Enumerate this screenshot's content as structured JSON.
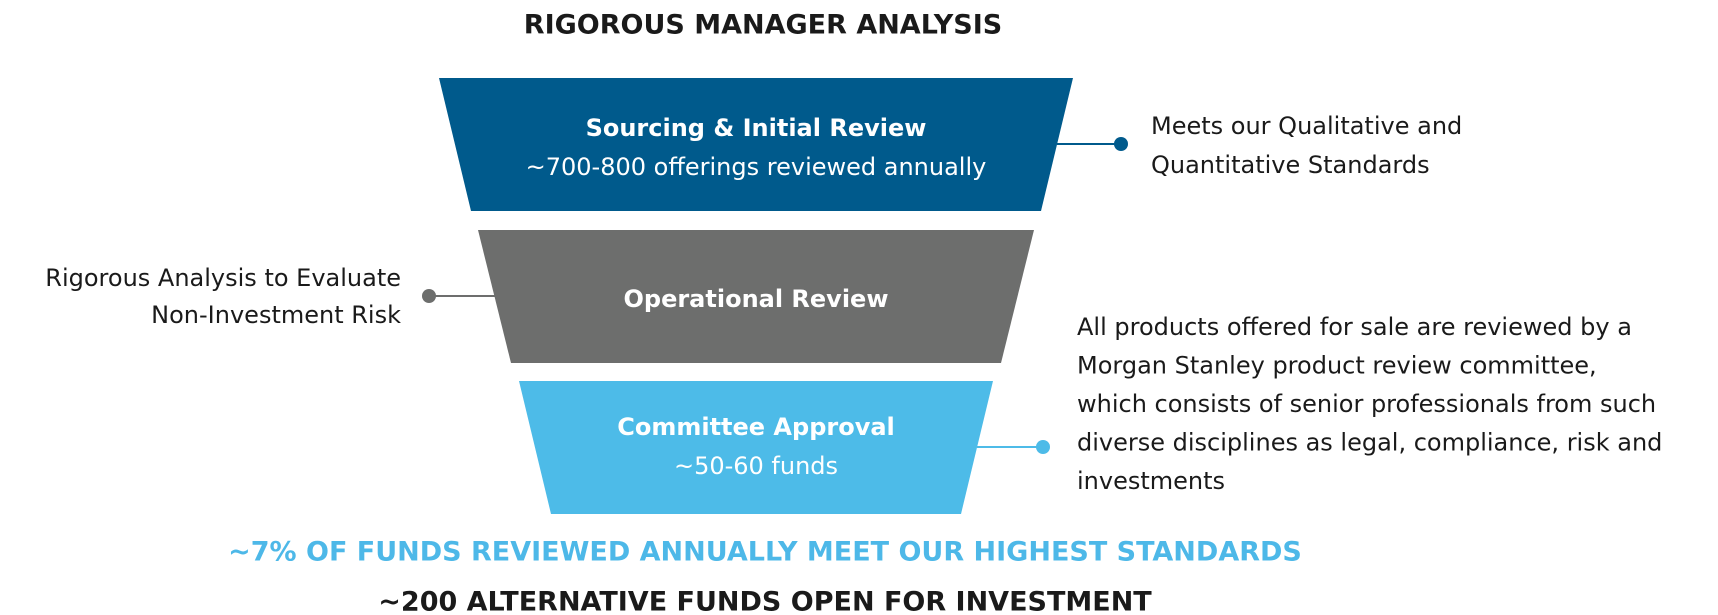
{
  "title": "RIGOROUS MANAGER ANALYSIS",
  "stages": [
    {
      "title": "Sourcing & Initial Review",
      "subtitle": "~700-800 offerings reviewed annually"
    },
    {
      "title": "Operational Review"
    },
    {
      "title": "Committee Approval",
      "subtitle": "~50-60 funds"
    }
  ],
  "annotations": [
    {
      "lines": [
        "Meets our Qualitative and",
        "Quantitative Standards"
      ]
    },
    {
      "lines": [
        "Rigorous Analysis to Evaluate",
        "Non-Investment Risk"
      ]
    },
    {
      "lines": [
        "All products offered for sale are reviewed by a",
        "Morgan Stanley product review committee,",
        "which consists of senior professionals from such",
        "diverse disciplines as legal, compliance, risk and",
        "investments"
      ]
    }
  ],
  "footer": [
    "~7% OF FUNDS REVIEWED ANNUALLY MEET OUR HIGHEST STANDARDS",
    "~200 ALTERNATIVE FUNDS OPEN FOR INVESTMENT"
  ]
}
